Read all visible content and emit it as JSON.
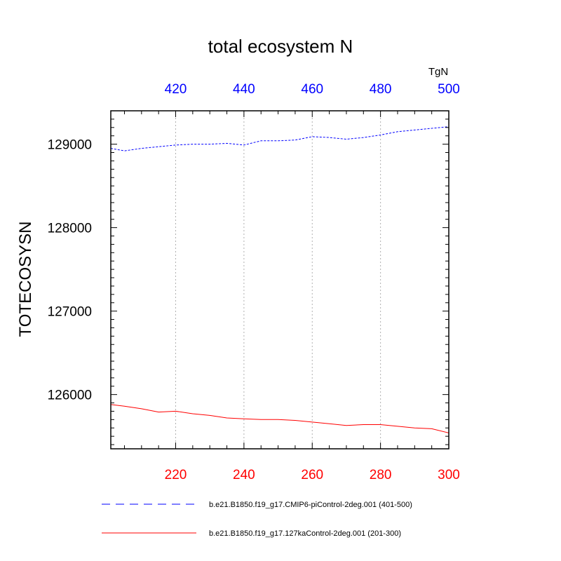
{
  "chart_data": {
    "type": "line",
    "title": "total ecosystem N",
    "ylabel": "TOTECOSYSN",
    "units": "TgN",
    "ylim": [
      125350,
      129400
    ],
    "x_bottom": {
      "range": [
        201,
        300
      ],
      "ticks": [
        220,
        240,
        260,
        280,
        300
      ],
      "color": "#ff0000"
    },
    "x_top": {
      "range": [
        401,
        500
      ],
      "ticks": [
        420,
        440,
        460,
        480,
        500
      ],
      "color": "#0000ff"
    },
    "y_ticks": [
      126000,
      127000,
      128000,
      129000
    ],
    "grid": "vertical dotted lines at x ticks",
    "legend_position": "bottom",
    "series": [
      {
        "name": "b.e21.B1850.f19_g17.CMIP6-piControl-2deg.001 (401-500)",
        "axis": "top",
        "color": "#0000ff",
        "dash": "dashed",
        "x": [
          401,
          405,
          410,
          415,
          420,
          425,
          430,
          435,
          440,
          445,
          450,
          455,
          460,
          465,
          470,
          475,
          480,
          485,
          490,
          495,
          500
        ],
        "y": [
          128950,
          128920,
          128950,
          128970,
          128990,
          129000,
          129000,
          129010,
          128990,
          129040,
          129040,
          129050,
          129090,
          129080,
          129060,
          129080,
          129110,
          129150,
          129170,
          129190,
          129210
        ]
      },
      {
        "name": "b.e21.B1850.f19_g17.127kaControl-2deg.001 (201-300)",
        "axis": "bottom",
        "color": "#ff0000",
        "dash": "solid",
        "x": [
          201,
          205,
          210,
          215,
          220,
          225,
          230,
          235,
          240,
          245,
          250,
          255,
          260,
          265,
          270,
          275,
          280,
          285,
          290,
          295,
          300
        ],
        "y": [
          125880,
          125860,
          125830,
          125790,
          125800,
          125770,
          125750,
          125720,
          125710,
          125700,
          125700,
          125690,
          125670,
          125650,
          125630,
          125640,
          125640,
          125620,
          125600,
          125590,
          125540
        ]
      }
    ]
  }
}
